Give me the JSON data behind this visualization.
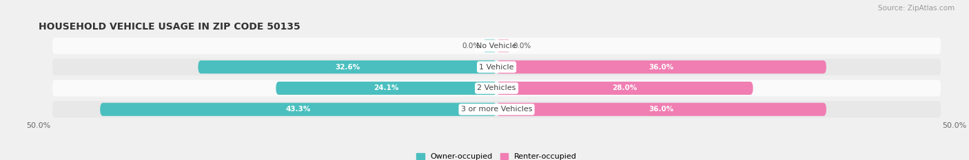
{
  "title": "HOUSEHOLD VEHICLE USAGE IN ZIP CODE 50135",
  "source": "Source: ZipAtlas.com",
  "categories": [
    "No Vehicle",
    "1 Vehicle",
    "2 Vehicles",
    "3 or more Vehicles"
  ],
  "owner_values": [
    0.0,
    32.6,
    24.1,
    43.3
  ],
  "renter_values": [
    0.0,
    36.0,
    28.0,
    36.0
  ],
  "owner_color": "#4BBFBF",
  "renter_color": "#F07EB2",
  "owner_label": "Owner-occupied",
  "renter_label": "Renter-occupied",
  "xlim": 50.0,
  "bar_height": 0.62,
  "background_color": "#f0f0f0",
  "row_bg_light": "#fafafa",
  "row_bg_dark": "#e8e8e8",
  "title_fontsize": 10,
  "source_fontsize": 7.5,
  "tick_fontsize": 8,
  "label_fontsize": 8,
  "value_fontsize": 7.5
}
